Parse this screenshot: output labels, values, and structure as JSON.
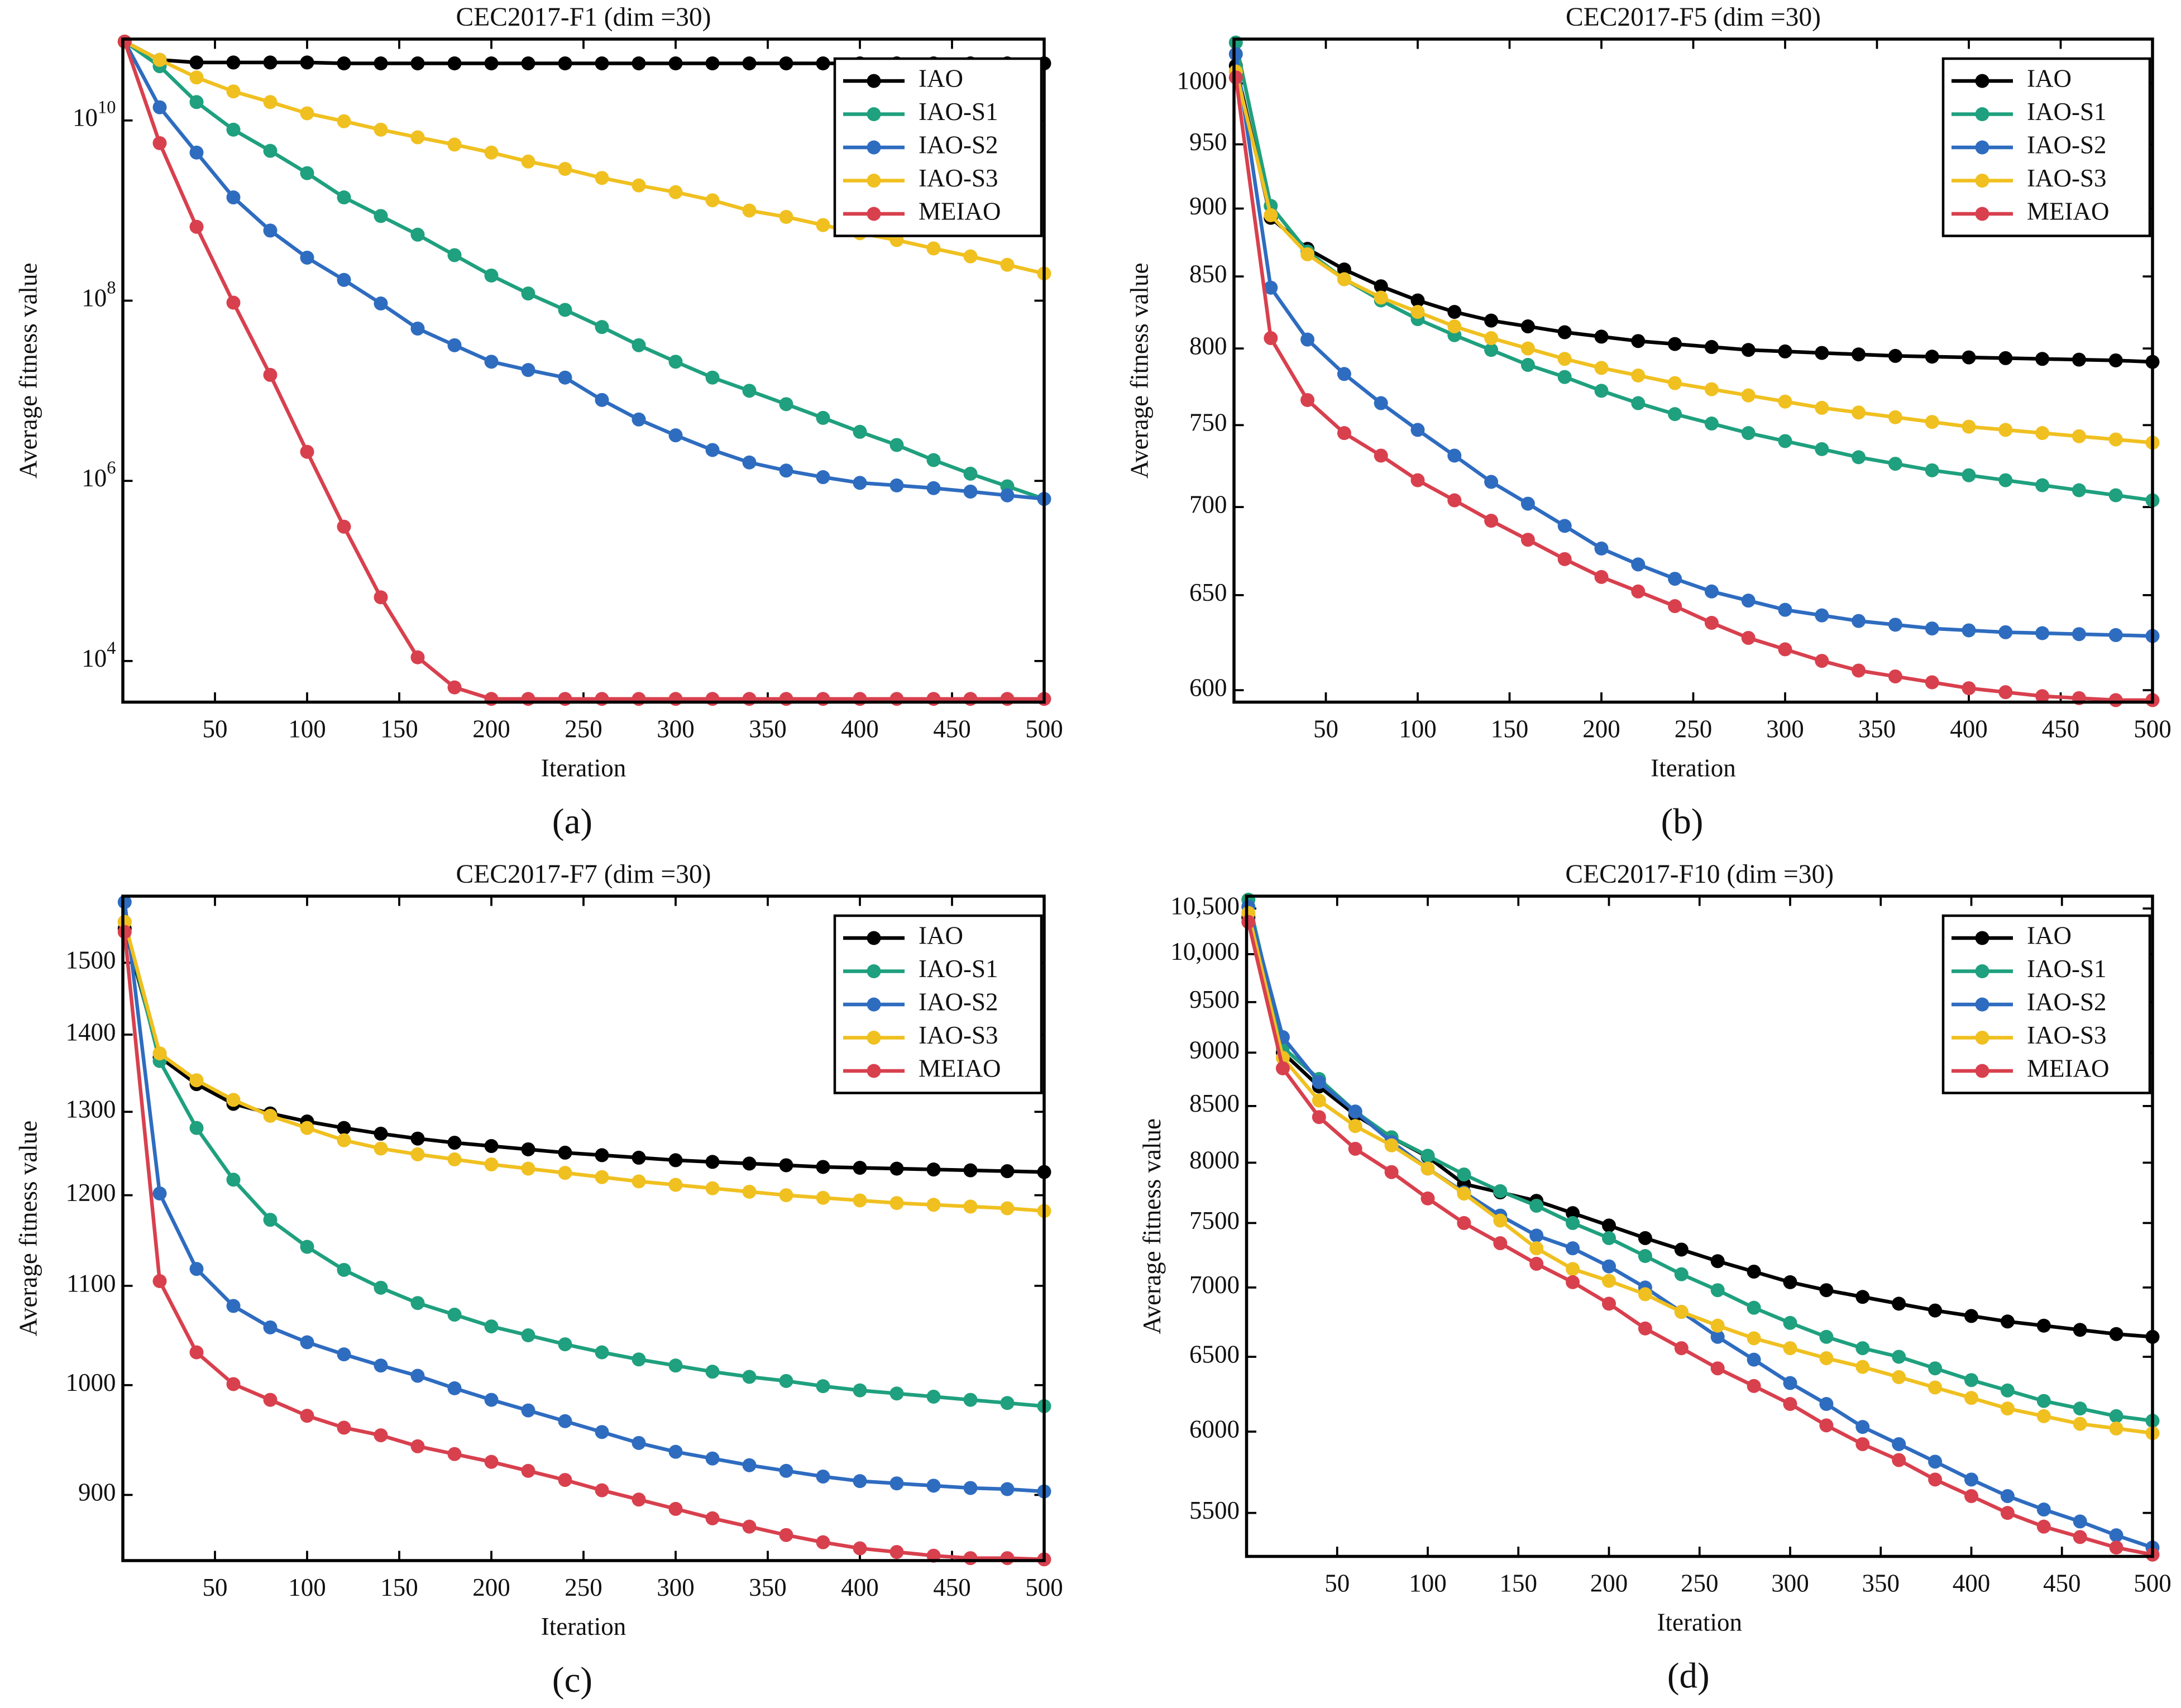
{
  "chart_data": [
    {
      "type": "line",
      "title": "CEC2017-F1 (dim =30)",
      "xlabel": "Iteration",
      "ylabel": "Average fitness value",
      "panel_label": "(a)",
      "log_y": true,
      "legend": "northeast",
      "xlim": [
        0,
        500
      ],
      "xticks": [
        50,
        100,
        150,
        200,
        250,
        300,
        350,
        400,
        450,
        500
      ],
      "ylim": [
        3500,
        80000000000.0
      ],
      "yticks": [
        {
          "value": 10000,
          "label": "10^4"
        },
        {
          "value": 1000000,
          "label": "10^6"
        },
        {
          "value": 100000000,
          "label": "10^8"
        },
        {
          "value": 10000000000,
          "label": "10^10"
        }
      ],
      "x": [
        1,
        20,
        40,
        60,
        80,
        100,
        120,
        140,
        160,
        180,
        200,
        220,
        240,
        260,
        280,
        300,
        320,
        340,
        360,
        380,
        400,
        420,
        440,
        460,
        480,
        500
      ],
      "series": [
        {
          "name": "IAO",
          "color": "#000000",
          "values": [
            75000000000.0,
            47000000000.0,
            44000000000.0,
            44000000000.0,
            44000000000.0,
            44000000000.0,
            43000000000.0,
            43000000000.0,
            43000000000.0,
            43000000000.0,
            43000000000.0,
            43000000000.0,
            43000000000.0,
            43000000000.0,
            43000000000.0,
            43000000000.0,
            43000000000.0,
            43000000000.0,
            43000000000.0,
            43000000000.0,
            43000000000.0,
            43000000000.0,
            43000000000.0,
            43000000000.0,
            43000000000.0,
            43000000000.0
          ]
        },
        {
          "name": "IAO-S1",
          "color": "#1fa07e",
          "values": [
            75000000000.0,
            40000000000.0,
            16000000000.0,
            7900000000.0,
            4600000000.0,
            2600000000.0,
            1400000000.0,
            870000000.0,
            540000000.0,
            320000000.0,
            190000000.0,
            120000000.0,
            79000000.0,
            51000000.0,
            32000000.0,
            21000000.0,
            14000000.0,
            10000000.0,
            7100000.0,
            5000000.0,
            3500000.0,
            2500000.0,
            1700000.0,
            1200000.0,
            870000.0,
            630000.0
          ]
        },
        {
          "name": "IAO-S2",
          "color": "#2e6cc0",
          "values": [
            75000000000.0,
            14000000000.0,
            4400000000.0,
            1400000000.0,
            600000000.0,
            300000000.0,
            170000000.0,
            93000000.0,
            49000000.0,
            32000000.0,
            21000000.0,
            17000000.0,
            14000000.0,
            7900000.0,
            4800000.0,
            3200000.0,
            2200000.0,
            1600000.0,
            1300000.0,
            1100000.0,
            950000.0,
            890000.0,
            830000.0,
            760000.0,
            690000.0,
            630000.0
          ]
        },
        {
          "name": "IAO-S3",
          "color": "#f0c020",
          "values": [
            75000000000.0,
            47000000000.0,
            30000000000.0,
            21000000000.0,
            16000000000.0,
            12000000000.0,
            9800000000.0,
            7900000000.0,
            6500000000.0,
            5400000000.0,
            4400000000.0,
            3500000000.0,
            2900000000.0,
            2300000000.0,
            1900000000.0,
            1600000000.0,
            1300000000.0,
            1000000000.0,
            850000000.0,
            690000000.0,
            560000000.0,
            470000000.0,
            380000000.0,
            310000000.0,
            250000000.0,
            200000000.0
          ]
        },
        {
          "name": "MEIAO",
          "color": "#d8404e",
          "values": [
            75000000000.0,
            5600000000.0,
            660000000.0,
            95000000.0,
            15000000.0,
            2100000.0,
            310000.0,
            51000.0,
            11000.0,
            5100,
            3800,
            3800,
            3800,
            3800,
            3800,
            3800,
            3800,
            3800,
            3800,
            3800,
            3800,
            3800,
            3800,
            3800,
            3800,
            3800
          ]
        }
      ]
    },
    {
      "type": "line",
      "title": "CEC2017-F5 (dim =30)",
      "xlabel": "Iteration",
      "ylabel": "Average fitness value",
      "panel_label": "(b)",
      "log_y": true,
      "legend": "northeast",
      "xlim": [
        0,
        500
      ],
      "xticks": [
        50,
        100,
        150,
        200,
        250,
        300,
        350,
        400,
        450,
        500
      ],
      "ylim": [
        594,
        1038
      ],
      "yticks": [
        600,
        650,
        700,
        750,
        800,
        850,
        900,
        950,
        1000
      ],
      "x": [
        1,
        20,
        40,
        60,
        80,
        100,
        120,
        140,
        160,
        180,
        200,
        220,
        240,
        260,
        280,
        300,
        320,
        340,
        360,
        380,
        400,
        420,
        440,
        460,
        480,
        500
      ],
      "series": [
        {
          "name": "IAO",
          "color": "#000000",
          "values": [
            1015,
            893,
            870,
            855,
            843,
            833,
            825,
            819,
            815,
            811,
            808,
            805,
            803,
            801,
            799,
            798,
            797,
            796,
            795,
            794.5,
            794,
            793.5,
            793,
            792.5,
            792,
            791
          ]
        },
        {
          "name": "IAO-S1",
          "color": "#1fa07e",
          "values": [
            1035,
            902,
            868,
            848,
            833,
            820,
            809,
            799,
            789,
            781,
            772,
            764,
            757,
            751,
            745,
            740,
            735,
            730,
            726,
            722,
            719,
            716,
            713,
            710,
            707,
            704
          ]
        },
        {
          "name": "IAO-S2",
          "color": "#2e6cc0",
          "values": [
            1025,
            842,
            806,
            783,
            764,
            747,
            731,
            715,
            702,
            689,
            676,
            667,
            659,
            652,
            647,
            642,
            639,
            636,
            634,
            632,
            631,
            630,
            629.5,
            629,
            628.5,
            628
          ]
        },
        {
          "name": "IAO-S3",
          "color": "#f0c020",
          "values": [
            1010,
            895,
            866,
            848,
            835,
            825,
            815,
            807,
            800,
            793,
            787,
            782,
            777,
            773,
            769,
            765,
            761,
            758,
            755,
            752,
            749,
            747,
            745,
            743,
            741,
            739
          ]
        },
        {
          "name": "MEIAO",
          "color": "#d8404e",
          "values": [
            1005,
            807,
            766,
            745,
            731,
            716,
            704,
            692,
            681,
            670,
            660,
            652,
            644,
            635,
            627,
            621,
            615,
            610,
            607,
            604,
            601,
            599,
            597,
            596,
            595,
            595
          ]
        }
      ]
    },
    {
      "type": "line",
      "title": "CEC2017-F7 (dim =30)",
      "xlabel": "Iteration",
      "ylabel": "Average fitness value",
      "panel_label": "(c)",
      "log_y": true,
      "legend": "northeast",
      "xlim": [
        0,
        500
      ],
      "xticks": [
        50,
        100,
        150,
        200,
        250,
        300,
        350,
        400,
        450,
        500
      ],
      "ylim": [
        845,
        1599
      ],
      "yticks": [
        900,
        1000,
        1100,
        1200,
        1300,
        1400,
        1500
      ],
      "x": [
        1,
        20,
        40,
        60,
        80,
        100,
        120,
        140,
        160,
        180,
        200,
        220,
        240,
        260,
        280,
        300,
        320,
        340,
        360,
        380,
        400,
        420,
        440,
        460,
        480,
        500
      ],
      "series": [
        {
          "name": "IAO",
          "color": "#000000",
          "values": [
            1550,
            1370,
            1335,
            1310,
            1298,
            1288,
            1280,
            1273,
            1267,
            1262,
            1258,
            1254,
            1250,
            1247,
            1244,
            1241,
            1239,
            1237,
            1235,
            1233,
            1232,
            1231,
            1230,
            1229,
            1228,
            1227
          ]
        },
        {
          "name": "IAO-S1",
          "color": "#1fa07e",
          "values": [
            1560,
            1365,
            1280,
            1218,
            1172,
            1142,
            1117,
            1098,
            1082,
            1070,
            1058,
            1049,
            1040,
            1032,
            1025,
            1019,
            1013,
            1008,
            1004,
            999,
            995,
            992,
            989,
            986,
            983,
            980
          ]
        },
        {
          "name": "IAO-S2",
          "color": "#2e6cc0",
          "values": [
            1590,
            1202,
            1118,
            1079,
            1057,
            1042,
            1030,
            1019,
            1009,
            997,
            986,
            976,
            966,
            956,
            946,
            938,
            932,
            926,
            921,
            916,
            912,
            910,
            908,
            906,
            905,
            903
          ]
        },
        {
          "name": "IAO-S3",
          "color": "#f0c020",
          "values": [
            1560,
            1375,
            1340,
            1315,
            1295,
            1280,
            1265,
            1255,
            1248,
            1242,
            1236,
            1231,
            1226,
            1221,
            1216,
            1212,
            1208,
            1204,
            1200,
            1197,
            1194,
            1191,
            1189,
            1187,
            1185,
            1182
          ]
        },
        {
          "name": "MEIAO",
          "color": "#d8404e",
          "values": [
            1545,
            1105,
            1032,
            1001,
            986,
            971,
            960,
            953,
            943,
            936,
            929,
            921,
            913,
            904,
            896,
            888,
            880,
            873,
            866,
            860,
            855,
            852,
            849,
            847,
            847,
            846
          ]
        }
      ]
    },
    {
      "type": "line",
      "title": "CEC2017-F10 (dim =30)",
      "xlabel": "Iteration",
      "ylabel": "Average fitness value",
      "panel_label": "(d)",
      "log_y": true,
      "legend": "northeast",
      "xlim": [
        0,
        500
      ],
      "xticks": [
        50,
        100,
        150,
        200,
        250,
        300,
        350,
        400,
        450,
        500
      ],
      "ylim": [
        5250,
        10640
      ],
      "yticks": [
        5500,
        6000,
        6500,
        7000,
        7500,
        8000,
        8500,
        9000,
        9500,
        {
          "value": 10000,
          "label": "10,000"
        },
        {
          "value": 10500,
          "label": "10,500"
        }
      ],
      "x": [
        1,
        20,
        40,
        60,
        80,
        100,
        120,
        140,
        160,
        180,
        200,
        220,
        240,
        260,
        280,
        300,
        320,
        340,
        360,
        380,
        400,
        420,
        440,
        460,
        480,
        500
      ],
      "series": [
        {
          "name": "IAO",
          "color": "#000000",
          "values": [
            10400,
            9000,
            8680,
            8420,
            8220,
            8050,
            7820,
            7750,
            7680,
            7580,
            7480,
            7380,
            7290,
            7200,
            7120,
            7040,
            6980,
            6930,
            6880,
            6830,
            6790,
            6750,
            6720,
            6690,
            6660,
            6640
          ]
        },
        {
          "name": "IAO-S1",
          "color": "#1fa07e",
          "values": [
            10600,
            9050,
            8750,
            8450,
            8220,
            8060,
            7900,
            7760,
            7640,
            7500,
            7380,
            7240,
            7100,
            6980,
            6850,
            6740,
            6640,
            6560,
            6500,
            6420,
            6340,
            6270,
            6200,
            6150,
            6100,
            6070
          ]
        },
        {
          "name": "IAO-S2",
          "color": "#2e6cc0",
          "values": [
            10520,
            9150,
            8720,
            8450,
            8180,
            7950,
            7750,
            7560,
            7400,
            7300,
            7160,
            7000,
            6820,
            6640,
            6480,
            6320,
            6180,
            6030,
            5920,
            5810,
            5700,
            5600,
            5520,
            5450,
            5370,
            5300
          ]
        },
        {
          "name": "IAO-S3",
          "color": "#f0c020",
          "values": [
            10450,
            8950,
            8550,
            8320,
            8150,
            7950,
            7740,
            7520,
            7300,
            7140,
            7050,
            6950,
            6820,
            6720,
            6630,
            6560,
            6490,
            6430,
            6360,
            6290,
            6220,
            6150,
            6100,
            6050,
            6020,
            5990
          ]
        },
        {
          "name": "MEIAO",
          "color": "#d8404e",
          "values": [
            10350,
            8850,
            8400,
            8120,
            7920,
            7700,
            7500,
            7340,
            7180,
            7040,
            6880,
            6700,
            6560,
            6420,
            6300,
            6180,
            6040,
            5920,
            5820,
            5700,
            5600,
            5500,
            5420,
            5360,
            5300,
            5260
          ]
        }
      ]
    }
  ]
}
